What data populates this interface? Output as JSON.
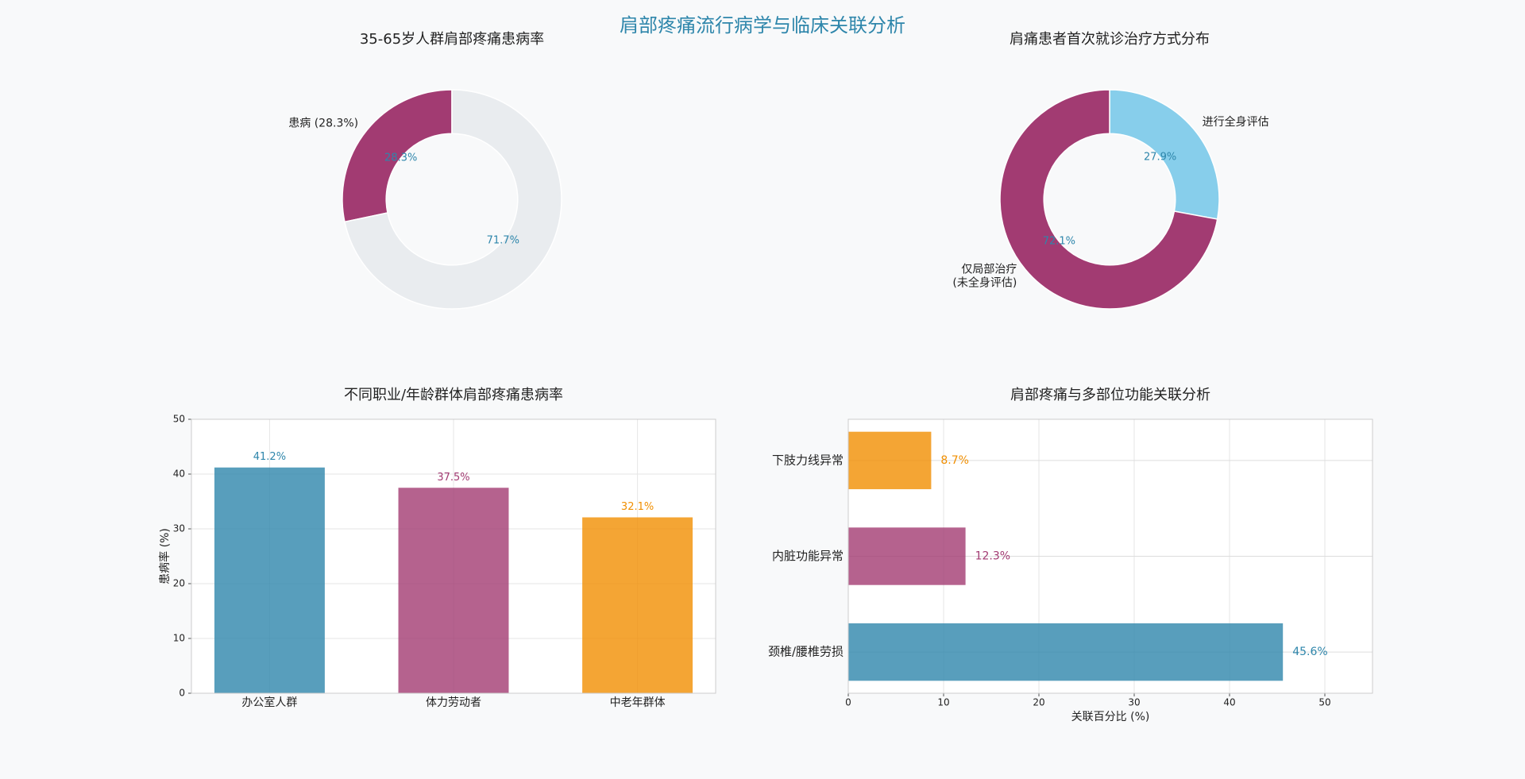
{
  "title": "肩部疼痛流行病学与临床关联分析",
  "chart_data": [
    {
      "type": "pie",
      "title": "35-65岁人群肩部疼痛患病率",
      "categories": [
        "患病 (28.3%)",
        null
      ],
      "values": [
        28.3,
        71.7
      ],
      "value_labels": [
        "28.3%",
        "71.7%"
      ],
      "colors": [
        "#a23b72",
        "#e9ecef"
      ],
      "counterclock": true
    },
    {
      "type": "pie",
      "title": "肩痛患者首次就诊治疗方式分布",
      "categories": [
        "进行全身评估",
        "仅局部治疗\n(未全身评估)"
      ],
      "values": [
        27.9,
        72.1
      ],
      "value_labels": [
        "27.9%",
        "72.1%"
      ],
      "colors": [
        "#87ceeb",
        "#a23b72"
      ],
      "counterclock": false
    },
    {
      "type": "bar",
      "title": "不同职业/年龄群体肩部疼痛患病率",
      "categories": [
        "办公室人群",
        "体力劳动者",
        "中老年群体"
      ],
      "values": [
        41.2,
        37.5,
        32.1
      ],
      "value_labels": [
        "41.2%",
        "37.5%",
        "32.1%"
      ],
      "colors": [
        "#2e86ab",
        "#a23b72",
        "#f18f01"
      ],
      "ylabel": "患病率 (%)",
      "ylim": [
        0,
        50
      ],
      "yticks": [
        0,
        10,
        20,
        30,
        40,
        50
      ],
      "grid": true
    },
    {
      "type": "barh",
      "title": "肩部疼痛与多部位功能关联分析",
      "categories": [
        "颈椎/腰椎劳损",
        "内脏功能异常",
        "下肢力线异常"
      ],
      "values": [
        45.6,
        12.3,
        8.7
      ],
      "value_labels": [
        "45.6%",
        "12.3%",
        "8.7%"
      ],
      "colors": [
        "#2e86ab",
        "#a23b72",
        "#f18f01"
      ],
      "xlabel": "关联百分比 (%)",
      "xlim": [
        0,
        55
      ],
      "xticks": [
        0,
        10,
        20,
        30,
        40,
        50
      ],
      "grid": true
    }
  ]
}
